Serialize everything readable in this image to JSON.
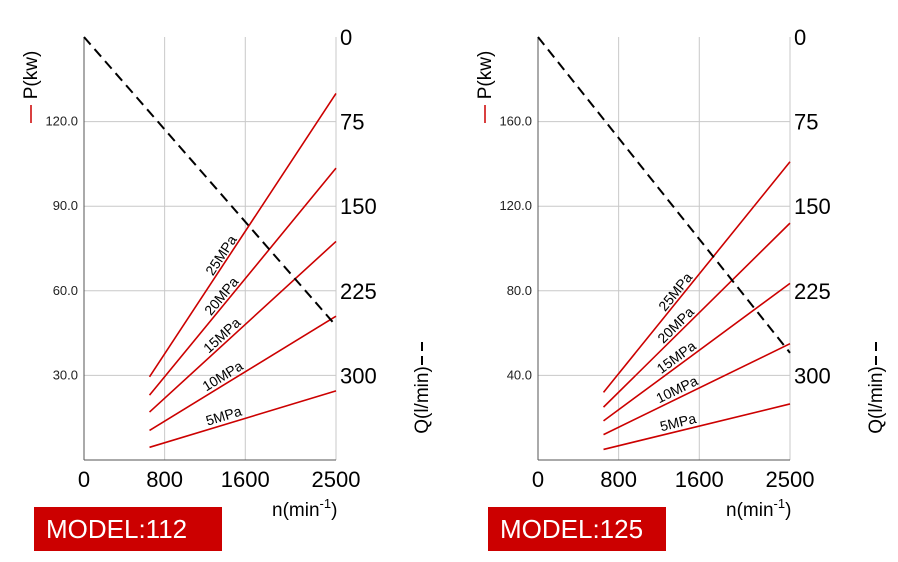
{
  "chart_data": [
    {
      "type": "line",
      "model_label": "MODEL:112",
      "x_ticks": [
        "0",
        "800",
        "1600",
        "2500"
      ],
      "xlabel_base": "n(min",
      "xlabel_exp": "-1",
      "xlabel_end": ")",
      "xlim": [
        0,
        2500
      ],
      "y_left_label": "P(kw)",
      "y_left_ticks": [
        "120.0",
        "90.0",
        "60.0",
        "30.0"
      ],
      "y_left_tick_values": [
        120,
        90,
        60,
        30
      ],
      "y_left_lim": [
        0,
        150
      ],
      "y_right_label": "Q(l/min)",
      "y_right_ticks": [
        "0",
        "75",
        "150",
        "225",
        "300"
      ],
      "y_right_tick_values": [
        0,
        75,
        150,
        225,
        300
      ],
      "y_right_lim": [
        0,
        375
      ],
      "grid": true,
      "accent_color": "#cc0000",
      "series": [
        {
          "name": "5MPa",
          "x": [
            650,
            2500
          ],
          "y": [
            4.5,
            24.5
          ]
        },
        {
          "name": "10MPa",
          "x": [
            650,
            2500
          ],
          "y": [
            10.5,
            51
          ]
        },
        {
          "name": "15MPa",
          "x": [
            650,
            2500
          ],
          "y": [
            17,
            77.5
          ]
        },
        {
          "name": "20MPa",
          "x": [
            650,
            2500
          ],
          "y": [
            23,
            103.5
          ]
        },
        {
          "name": "25MPa",
          "x": [
            650,
            2500
          ],
          "y": [
            29.5,
            130
          ]
        }
      ],
      "flow": {
        "x": [
          0,
          2500
        ],
        "y": [
          0,
          256
        ]
      }
    },
    {
      "type": "line",
      "model_label": "MODEL:125",
      "x_ticks": [
        "0",
        "800",
        "1600",
        "2500"
      ],
      "xlabel_base": "n(min",
      "xlabel_exp": "-1",
      "xlabel_end": ")",
      "xlim": [
        0,
        2500
      ],
      "y_left_label": "P(kw)",
      "y_left_ticks": [
        "160.0",
        "120.0",
        "80.0",
        "40.0"
      ],
      "y_left_tick_values": [
        160,
        120,
        80,
        40
      ],
      "y_left_lim": [
        0,
        200
      ],
      "y_right_label": "Q(l/min)",
      "y_right_ticks": [
        "0",
        "75",
        "150",
        "225",
        "300"
      ],
      "y_right_tick_values": [
        0,
        75,
        150,
        225,
        300
      ],
      "y_right_lim": [
        0,
        375
      ],
      "grid": true,
      "accent_color": "#cc0000",
      "series": [
        {
          "name": "5MPa",
          "x": [
            650,
            2500
          ],
          "y": [
            5,
            26.5
          ]
        },
        {
          "name": "10MPa",
          "x": [
            650,
            2500
          ],
          "y": [
            12,
            55
          ]
        },
        {
          "name": "15MPa",
          "x": [
            650,
            2500
          ],
          "y": [
            18.5,
            83.5
          ]
        },
        {
          "name": "20MPa",
          "x": [
            650,
            2500
          ],
          "y": [
            25,
            112
          ]
        },
        {
          "name": "25MPa",
          "x": [
            650,
            2500
          ],
          "y": [
            32,
            141
          ]
        }
      ],
      "flow": {
        "x": [
          0,
          2500
        ],
        "y": [
          0,
          280
        ]
      }
    }
  ]
}
